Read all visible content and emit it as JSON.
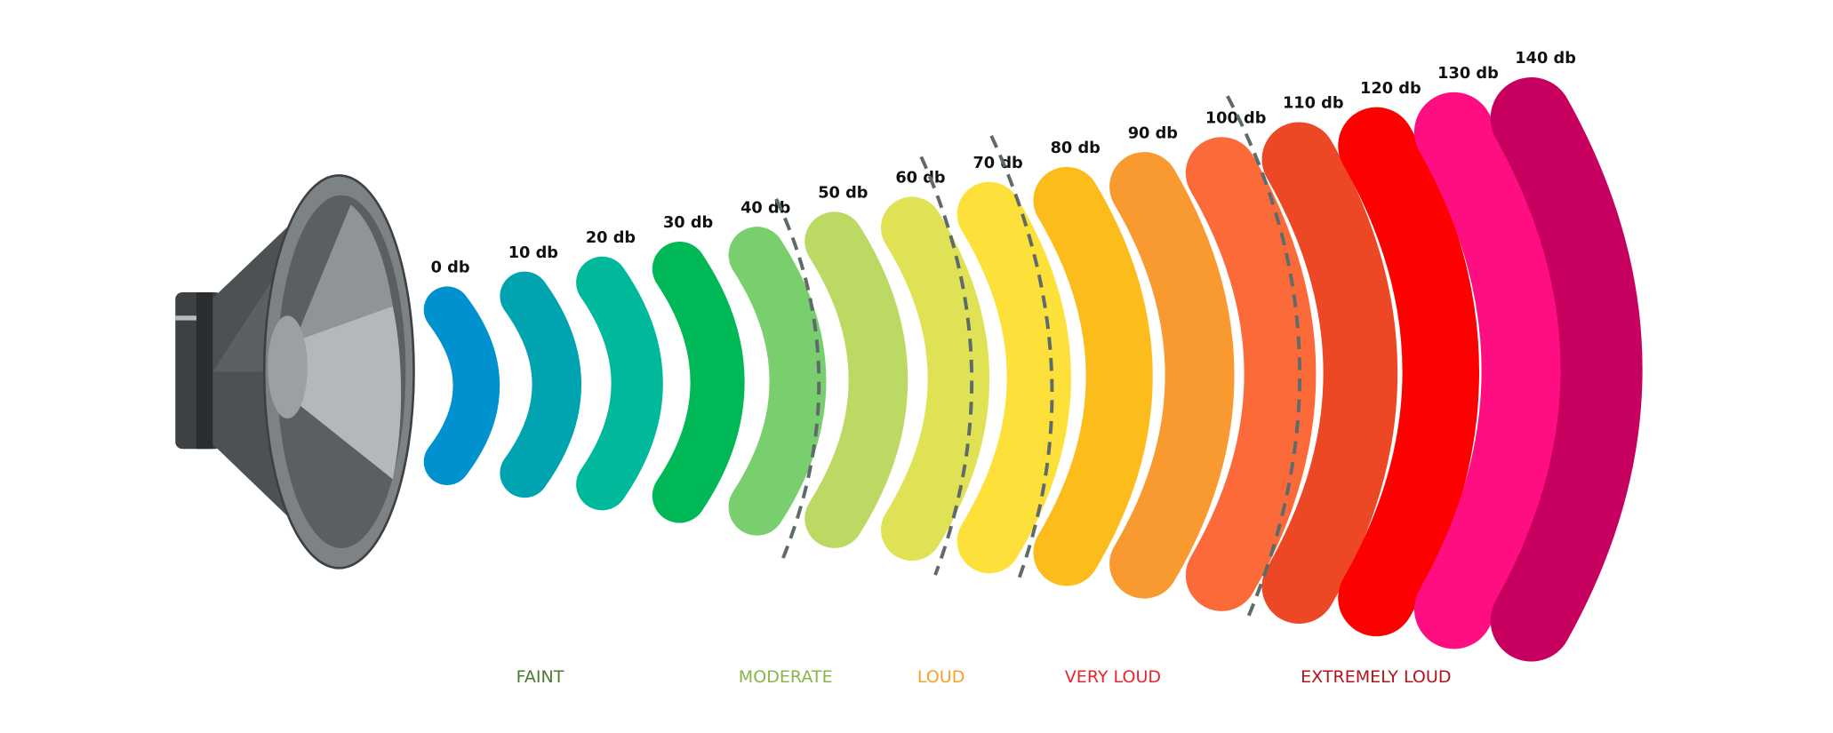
{
  "levels": [
    {
      "label": "0 db",
      "color": "#0091cf"
    },
    {
      "label": "10 db",
      "color": "#00a3b0"
    },
    {
      "label": "20 db",
      "color": "#00b89a"
    },
    {
      "label": "30 db",
      "color": "#00b956"
    },
    {
      "label": "40 db",
      "color": "#79cf6e"
    },
    {
      "label": "50 db",
      "color": "#bcd964"
    },
    {
      "label": "60 db",
      "color": "#e0e255"
    },
    {
      "label": "70 db",
      "color": "#fde03a"
    },
    {
      "label": "80 db",
      "color": "#fbbc1c"
    },
    {
      "label": "90 db",
      "color": "#f99a30"
    },
    {
      "label": "100 db",
      "color": "#fc6a3a"
    },
    {
      "label": "110 db",
      "color": "#ec4826"
    },
    {
      "label": "120 db",
      "color": "#fd0000"
    },
    {
      "label": "130 db",
      "color": "#fe0e80"
    },
    {
      "label": "140 db",
      "color": "#c7005f"
    }
  ],
  "categories": [
    {
      "label": "FAINT",
      "color": "#4a7a2e"
    },
    {
      "label": "MODERATE",
      "color": "#8ab54a"
    },
    {
      "label": "LOUD",
      "color": "#f7a02a"
    },
    {
      "label": "VERY LOUD",
      "color": "#e8262a"
    },
    {
      "label": "EXTREMELY LOUD",
      "color": "#b5121b"
    }
  ]
}
